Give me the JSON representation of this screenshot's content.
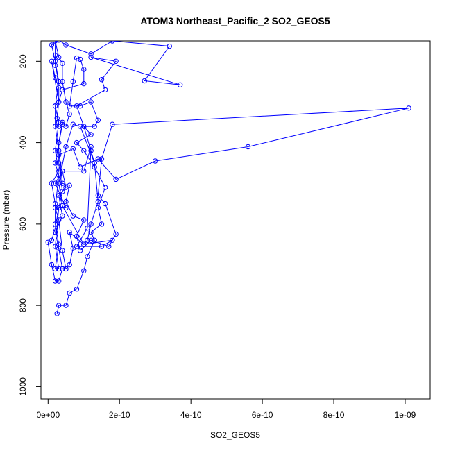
{
  "chart_data": {
    "type": "line",
    "title": "ATOM3 Northeast_Pacific_2 SO2_GEOS5",
    "xlabel": "SO2_GEOS5",
    "ylabel": "Pressure (mbar)",
    "xlim": [
      -2e-11,
      1.07e-09
    ],
    "ylim": [
      1030,
      150
    ],
    "y_reversed": true,
    "grid": false,
    "x_ticks": [
      {
        "value": 0,
        "label": "0e+00"
      },
      {
        "value": 2e-10,
        "label": "2e-10"
      },
      {
        "value": 4e-10,
        "label": "4e-10"
      },
      {
        "value": 6e-10,
        "label": "6e-10"
      },
      {
        "value": 8e-10,
        "label": "8e-10"
      },
      {
        "value": 1e-09,
        "label": "1e-09"
      }
    ],
    "y_ticks": [
      {
        "value": 200,
        "label": "200"
      },
      {
        "value": 400,
        "label": "400"
      },
      {
        "value": 600,
        "label": "600"
      },
      {
        "value": 800,
        "label": "800"
      },
      {
        "value": 1000,
        "label": "1000"
      }
    ],
    "color": "#0000ff",
    "points": [
      [
        2.5e-11,
        820
      ],
      [
        3e-11,
        800
      ],
      [
        5e-11,
        800
      ],
      [
        6e-11,
        770
      ],
      [
        8e-11,
        760
      ],
      [
        1e-10,
        715
      ],
      [
        1.1e-10,
        680
      ],
      [
        1.3e-10,
        640
      ],
      [
        1.2e-10,
        620
      ],
      [
        1.5e-10,
        600
      ],
      [
        1.4e-10,
        560
      ],
      [
        1.6e-10,
        510
      ],
      [
        1.3e-10,
        460
      ],
      [
        1e-10,
        420
      ],
      [
        8e-11,
        400
      ],
      [
        1.2e-10,
        380
      ],
      [
        1e-10,
        360
      ],
      [
        8e-11,
        310
      ],
      [
        1.6e-10,
        270
      ],
      [
        1.5e-10,
        245
      ],
      [
        1.9e-10,
        200
      ],
      [
        1.2e-10,
        190
      ],
      [
        3.7e-10,
        258
      ],
      [
        2.7e-10,
        248
      ],
      [
        3.4e-10,
        163
      ],
      [
        1.8e-10,
        150
      ],
      [
        1.2e-10,
        182
      ],
      [
        5e-11,
        160
      ],
      [
        3e-11,
        148
      ],
      [
        1e-11,
        160
      ],
      [
        2e-11,
        200
      ],
      [
        3e-11,
        250
      ],
      [
        2e-11,
        310
      ],
      [
        3e-11,
        350
      ],
      [
        2e-11,
        420
      ],
      [
        3e-11,
        470
      ],
      [
        1e-11,
        500
      ],
      [
        2e-11,
        550
      ],
      [
        2e-11,
        600
      ],
      [
        3e-11,
        650
      ],
      [
        2e-11,
        710
      ],
      [
        4e-11,
        710
      ],
      [
        3e-11,
        660
      ],
      [
        2e-11,
        620
      ],
      [
        4e-11,
        580
      ],
      [
        3e-11,
        530
      ],
      [
        5e-11,
        510
      ],
      [
        4e-11,
        470
      ],
      [
        3e-11,
        430
      ],
      [
        7e-11,
        415
      ],
      [
        9e-11,
        460
      ],
      [
        1.4e-10,
        440
      ],
      [
        1.9e-10,
        490
      ],
      [
        3e-10,
        445
      ],
      [
        5.6e-10,
        410
      ],
      [
        1.01e-09,
        315
      ],
      [
        1.8e-10,
        355
      ],
      [
        1.5e-10,
        440
      ],
      [
        1.4e-10,
        530
      ],
      [
        1.6e-10,
        550
      ],
      [
        1.9e-10,
        625
      ],
      [
        1.7e-10,
        655
      ],
      [
        1.2e-10,
        640
      ],
      [
        9e-11,
        665
      ],
      [
        8e-11,
        630
      ],
      [
        1e-10,
        590
      ],
      [
        7e-11,
        580
      ],
      [
        5e-11,
        545
      ],
      [
        6e-11,
        505
      ],
      [
        4e-11,
        500
      ],
      [
        3e-11,
        420
      ],
      [
        2e-11,
        360
      ],
      [
        2e-11,
        310
      ],
      [
        3e-11,
        250
      ],
      [
        2e-11,
        210
      ],
      [
        2e-11,
        185
      ],
      [
        2e-11,
        150
      ],
      [
        3e-11,
        190
      ],
      [
        4e-11,
        205
      ],
      [
        4e-11,
        250
      ],
      [
        5e-11,
        300
      ],
      [
        6e-11,
        330
      ],
      [
        5e-11,
        360
      ],
      [
        4e-11,
        350
      ],
      [
        3e-11,
        400
      ],
      [
        3e-11,
        450
      ],
      [
        4e-11,
        520
      ],
      [
        3e-11,
        560
      ],
      [
        2e-11,
        610
      ],
      [
        1e-11,
        640
      ],
      [
        0,
        645
      ],
      [
        1e-11,
        700
      ],
      [
        2e-11,
        740
      ],
      [
        3e-11,
        740
      ],
      [
        4e-11,
        710
      ],
      [
        5e-11,
        710
      ],
      [
        6e-11,
        700
      ],
      [
        7e-11,
        660
      ],
      [
        6e-11,
        620
      ],
      [
        1e-10,
        650
      ],
      [
        1.1e-10,
        640
      ],
      [
        1.2e-10,
        600
      ],
      [
        1.4e-10,
        545
      ],
      [
        1.3e-10,
        450
      ],
      [
        1.2e-10,
        420
      ],
      [
        1e-10,
        360
      ],
      [
        1.3e-10,
        360
      ],
      [
        1.4e-10,
        345
      ],
      [
        1.2e-10,
        300
      ],
      [
        9e-11,
        310
      ],
      [
        6e-11,
        310
      ],
      [
        7e-11,
        250
      ],
      [
        8e-11,
        192
      ],
      [
        9e-11,
        195
      ],
      [
        1e-10,
        220
      ],
      [
        1e-10,
        255
      ],
      [
        4e-11,
        270
      ],
      [
        3e-11,
        300
      ],
      [
        1e-11,
        200
      ],
      [
        2e-11,
        240
      ],
      [
        3e-11,
        265
      ],
      [
        3e-11,
        300
      ],
      [
        2.5e-11,
        340
      ],
      [
        3e-11,
        360
      ],
      [
        4e-11,
        355
      ],
      [
        2e-11,
        450
      ],
      [
        3e-11,
        480
      ],
      [
        2e-11,
        560
      ],
      [
        3e-11,
        590
      ],
      [
        4e-11,
        665
      ],
      [
        5e-11,
        710
      ],
      [
        3e-11,
        710
      ],
      [
        2e-11,
        655
      ],
      [
        3e-11,
        560
      ],
      [
        5e-11,
        560
      ],
      [
        2e-11,
        500
      ],
      [
        4e-11,
        470
      ],
      [
        1e-10,
        470
      ],
      [
        1.2e-10,
        410
      ],
      [
        1.1e-10,
        610
      ],
      [
        8e-11,
        655
      ],
      [
        1.5e-10,
        655
      ],
      [
        1.8e-10,
        640
      ],
      [
        1e-10,
        650
      ],
      [
        4e-11,
        555
      ],
      [
        3e-11,
        500
      ],
      [
        5e-11,
        410
      ],
      [
        7e-11,
        355
      ],
      [
        9e-11,
        360
      ],
      [
        1.3e-10,
        450
      ]
    ]
  }
}
